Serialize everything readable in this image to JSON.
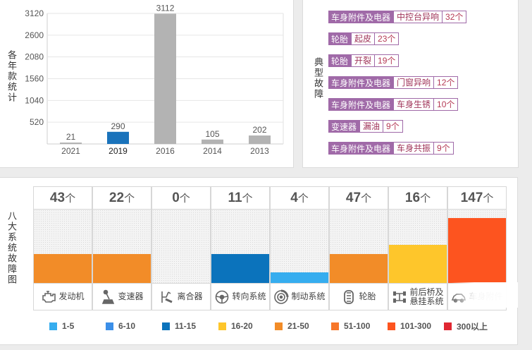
{
  "year_panel": {
    "title": "各年款统计",
    "chart_data": {
      "type": "bar",
      "categories": [
        "2021",
        "2019",
        "2016",
        "2014",
        "2013"
      ],
      "values": [
        21,
        290,
        3112,
        105,
        202
      ],
      "bar_colors": [
        "#b3b3b3",
        "#1a73bb",
        "#b3b3b3",
        "#b3b3b3",
        "#b3b3b3"
      ],
      "highlighted_category": "2019",
      "yticks": [
        520,
        1040,
        1560,
        2080,
        2600,
        3120
      ],
      "ylim": [
        0,
        3120
      ],
      "grid": true,
      "xlabel": "",
      "ylabel": ""
    }
  },
  "fault_panel": {
    "title": "典型故障",
    "items": [
      {
        "category": "车身附件及电器",
        "fault": "中控台异响",
        "count": "32个"
      },
      {
        "category": "轮胎",
        "fault": "起皮",
        "count": "23个"
      },
      {
        "category": "轮胎",
        "fault": "开裂",
        "count": "19个"
      },
      {
        "category": "车身附件及电器",
        "fault": "门窗异响",
        "count": "12个"
      },
      {
        "category": "车身附件及电器",
        "fault": "车身生锈",
        "count": "10个"
      },
      {
        "category": "变速器",
        "fault": "漏油",
        "count": "9个"
      },
      {
        "category": "车身附件及电器",
        "fault": "车身共振",
        "count": "9个"
      }
    ]
  },
  "eight_panel": {
    "title": "八大系统故障图",
    "unit": "个",
    "systems": [
      {
        "count": 43,
        "label_lines": [
          "发动机"
        ],
        "icon": "engine-icon",
        "color": "#f28c28",
        "level": 0.39
      },
      {
        "count": 22,
        "label_lines": [
          "变速器"
        ],
        "icon": "gear-shift-icon",
        "color": "#f28c28",
        "level": 0.39
      },
      {
        "count": 0,
        "label_lines": [
          "离合器"
        ],
        "icon": "clutch-pedal-icon",
        "color": "#f4f4f4",
        "level": 0
      },
      {
        "count": 11,
        "label_lines": [
          "转向系统"
        ],
        "icon": "steering-wheel-icon",
        "color": "#0b73bc",
        "level": 0.39
      },
      {
        "count": 4,
        "label_lines": [
          "制动系统"
        ],
        "icon": "brake-disc-icon",
        "color": "#36adef",
        "level": 0.14
      },
      {
        "count": 47,
        "label_lines": [
          "轮胎"
        ],
        "icon": "tire-icon",
        "color": "#f28c28",
        "level": 0.39
      },
      {
        "count": 16,
        "label_lines": [
          "前后桥及",
          "悬挂系统"
        ],
        "icon": "axle-icon",
        "color": "#fec62b",
        "level": 0.52
      },
      {
        "count": 147,
        "label_lines": [
          "车身附件"
        ],
        "icon": "car-body-icon",
        "color": "#fd541f",
        "level": 0.88
      }
    ],
    "legend": [
      {
        "label": "1-5",
        "color": "#36adef"
      },
      {
        "label": "6-10",
        "color": "#3b8fe8"
      },
      {
        "label": "11-15",
        "color": "#0b73bc"
      },
      {
        "label": "16-20",
        "color": "#fec62b"
      },
      {
        "label": "21-50",
        "color": "#f28c28"
      },
      {
        "label": "51-100",
        "color": "#f7772a"
      },
      {
        "label": "101-300",
        "color": "#fd541f"
      },
      {
        "label": "300以上",
        "color": "#e02732"
      }
    ]
  }
}
